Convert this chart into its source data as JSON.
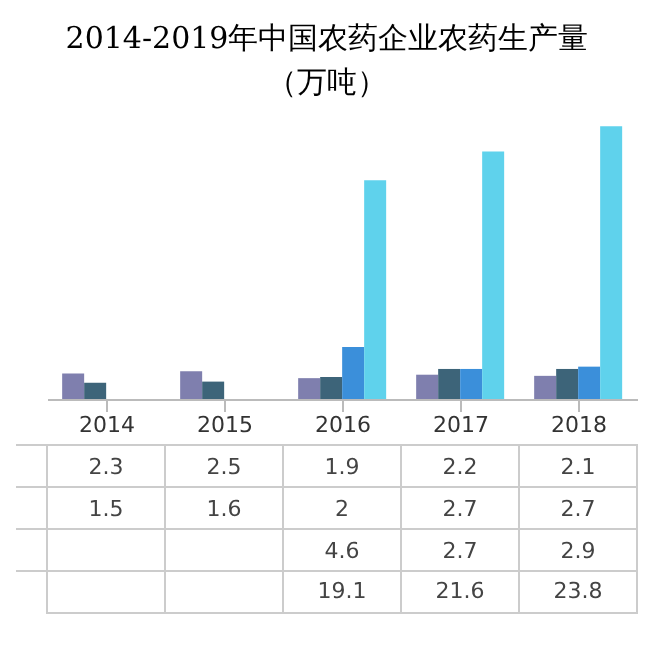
{
  "chart_data": {
    "type": "bar",
    "title": "2014-2019年中国农药企业农药生产量",
    "subtitle": "（万吨）",
    "categories": [
      "2014",
      "2015",
      "2016",
      "2017",
      "2018"
    ],
    "series": [
      {
        "color": "#7f7fae",
        "values": [
          2.3,
          2.5,
          1.9,
          2.2,
          2.1
        ]
      },
      {
        "color": "#3d6479",
        "values": [
          1.5,
          1.6,
          2.0,
          2.7,
          2.7
        ]
      },
      {
        "color": "#3b8fda",
        "values": [
          null,
          null,
          4.6,
          2.7,
          2.9
        ]
      },
      {
        "color": "#5fd2ec",
        "values": [
          null,
          null,
          19.1,
          21.6,
          23.8
        ]
      }
    ],
    "tick_labels": "x",
    "data_labels": true
  }
}
